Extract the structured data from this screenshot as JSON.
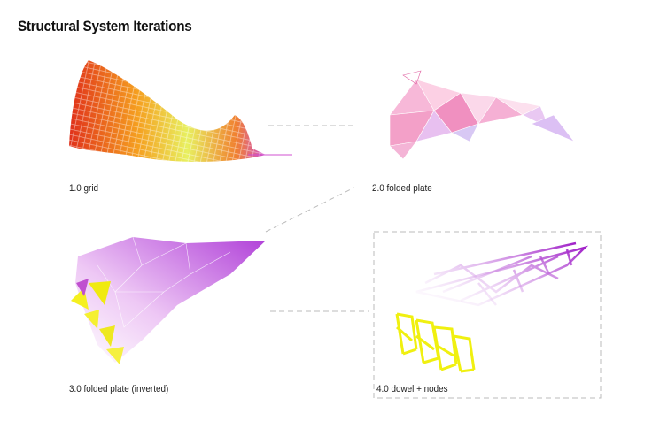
{
  "header": {
    "title": "Structural System Iterations"
  },
  "panels": [
    {
      "label": "1.0 grid"
    },
    {
      "label": "2.0 folded plate"
    },
    {
      "label": "3.0 folded plate (inverted)"
    },
    {
      "label": "4.0 dowel + nodes"
    }
  ]
}
